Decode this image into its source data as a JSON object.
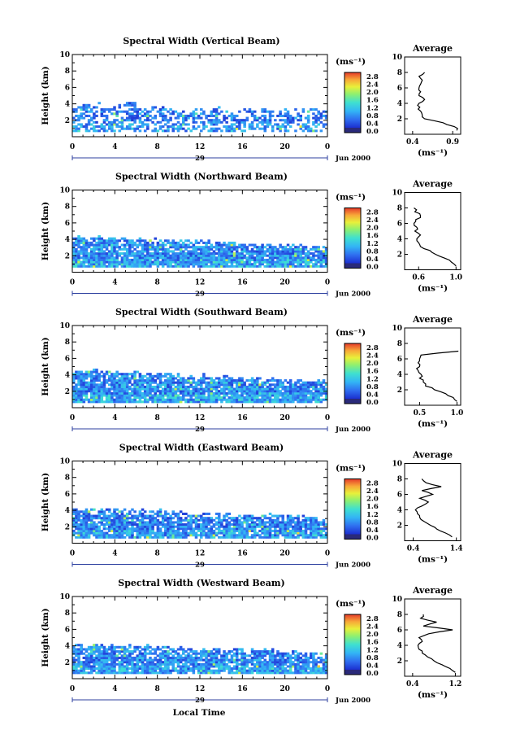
{
  "figure": {
    "x_axis_label": "Local Time",
    "colormap_stops": [
      "#2a2a7a",
      "#1c2fd0",
      "#2f6ff0",
      "#33b5f5",
      "#3fe0d0",
      "#8ef070",
      "#e8f03a",
      "#f8a838",
      "#e63a2a"
    ]
  },
  "chart_data": [
    {
      "type": "heatmap",
      "title": "Spectral Width (Vertical Beam)",
      "ylabel": "Height (km)",
      "ylim": [
        0,
        10
      ],
      "y_ticks": [
        "2",
        "4",
        "6",
        "8",
        "10"
      ],
      "xlim": [
        0,
        24
      ],
      "x_ticks": [
        "0",
        "4",
        "8",
        "12",
        "16",
        "20",
        "0"
      ],
      "date_day": "29",
      "date_month": "Jun 2000",
      "colorbar": {
        "unit": "(ms⁻¹)",
        "range": [
          0,
          2.8
        ],
        "ticks": [
          "2.8",
          "2.4",
          "2.0",
          "1.6",
          "1.2",
          "0.8",
          "0.4",
          "0.0"
        ]
      },
      "echo_top_km": [
        3.9,
        3.8,
        4.2,
        3.5,
        3.6,
        4.0,
        3.4,
        3.5,
        3.6,
        3.3,
        3.2,
        3.3,
        3.2,
        3.3,
        3.1,
        3.0,
        3.2,
        3.1,
        3.4,
        3.0,
        3.2,
        3.3,
        3.2,
        3.0
      ],
      "coverage": 0.55,
      "intensity": 0.3,
      "average": {
        "title": "Average",
        "xlabel": "(ms⁻¹)",
        "x_ticks": [
          "0.4",
          "0.9"
        ],
        "xlim": [
          0.3,
          1.0
        ],
        "height_km": [
          0.5,
          1.0,
          1.5,
          2.0,
          2.5,
          3.0,
          3.5,
          4.0,
          4.5,
          5.0,
          5.5,
          6.0,
          6.5,
          7.0,
          7.5,
          8.0
        ],
        "value": [
          0.95,
          0.92,
          0.78,
          0.55,
          0.52,
          0.5,
          0.49,
          0.48,
          0.55,
          0.48,
          0.5,
          0.48,
          0.5,
          0.52,
          0.48,
          0.55
        ]
      }
    },
    {
      "type": "heatmap",
      "title": "Spectral Width (Northward Beam)",
      "ylabel": "Height (km)",
      "ylim": [
        0,
        10
      ],
      "y_ticks": [
        "2",
        "4",
        "6",
        "8",
        "10"
      ],
      "xlim": [
        0,
        24
      ],
      "x_ticks": [
        "0",
        "4",
        "8",
        "12",
        "16",
        "20",
        "0"
      ],
      "date_day": "29",
      "date_month": "Jun 2000",
      "colorbar": {
        "unit": "(ms⁻¹)",
        "range": [
          0,
          2.8
        ],
        "ticks": [
          "2.8",
          "2.4",
          "2.0",
          "1.6",
          "1.2",
          "0.8",
          "0.4",
          "0.0"
        ]
      },
      "echo_top_km": [
        4.2,
        4.1,
        4.2,
        4.1,
        4.0,
        4.0,
        3.9,
        3.9,
        3.8,
        3.7,
        3.7,
        3.6,
        3.6,
        3.5,
        3.5,
        3.4,
        3.4,
        3.3,
        3.3,
        3.2,
        3.2,
        3.1,
        3.1,
        3.0
      ],
      "coverage": 0.93,
      "intensity": 0.35,
      "average": {
        "title": "Average",
        "xlabel": "(ms⁻¹)",
        "x_ticks": [
          "0.6",
          "1.0"
        ],
        "xlim": [
          0.45,
          1.05
        ],
        "height_km": [
          0.5,
          1.0,
          1.5,
          2.0,
          2.5,
          3.0,
          3.5,
          4.0,
          4.5,
          5.0,
          5.5,
          6.0,
          6.5,
          7.0,
          7.5,
          8.0
        ],
        "value": [
          1.0,
          0.95,
          0.88,
          0.78,
          0.72,
          0.62,
          0.6,
          0.58,
          0.62,
          0.56,
          0.58,
          0.55,
          0.57,
          0.62,
          0.56,
          0.55
        ]
      }
    },
    {
      "type": "heatmap",
      "title": "Spectral Width (Southward Beam)",
      "ylabel": "Height (km)",
      "ylim": [
        0,
        10
      ],
      "y_ticks": [
        "2",
        "4",
        "6",
        "8",
        "10"
      ],
      "xlim": [
        0,
        24
      ],
      "x_ticks": [
        "0",
        "4",
        "8",
        "12",
        "16",
        "20",
        "0"
      ],
      "date_day": "29",
      "date_month": "Jun 2000",
      "colorbar": {
        "unit": "(ms⁻¹)",
        "range": [
          0,
          2.8
        ],
        "ticks": [
          "2.8",
          "2.4",
          "2.0",
          "1.6",
          "1.2",
          "0.8",
          "0.4",
          "0.0"
        ]
      },
      "echo_top_km": [
        4.4,
        4.3,
        4.4,
        4.3,
        4.2,
        4.2,
        4.1,
        4.1,
        4.0,
        4.0,
        3.9,
        3.8,
        3.8,
        3.7,
        3.7,
        3.6,
        3.5,
        3.5,
        3.4,
        3.3,
        3.3,
        3.2,
        3.2,
        3.1
      ],
      "coverage": 0.92,
      "intensity": 0.35,
      "average": {
        "title": "Average",
        "xlabel": "(ms⁻¹)",
        "x_ticks": [
          "0.5",
          "1.0"
        ],
        "xlim": [
          0.3,
          1.05
        ],
        "height_km": [
          0.5,
          1.0,
          1.5,
          2.0,
          2.5,
          3.0,
          3.5,
          4.0,
          4.5,
          5.0,
          5.5,
          6.0,
          6.5,
          7.0
        ],
        "value": [
          1.0,
          0.95,
          0.85,
          0.7,
          0.58,
          0.55,
          0.5,
          0.52,
          0.48,
          0.5,
          0.48,
          0.5,
          0.52,
          1.02
        ]
      }
    },
    {
      "type": "heatmap",
      "title": "Spectral Width (Eastward Beam)",
      "ylabel": "Height (km)",
      "ylim": [
        0,
        10
      ],
      "y_ticks": [
        "2",
        "4",
        "6",
        "8",
        "10"
      ],
      "xlim": [
        0,
        24
      ],
      "x_ticks": [
        "0",
        "4",
        "8",
        "12",
        "16",
        "20",
        "0"
      ],
      "date_day": "29",
      "date_month": "Jun 2000",
      "colorbar": {
        "unit": "(ms⁻¹)",
        "range": [
          0,
          2.8
        ],
        "ticks": [
          "2.8",
          "2.4",
          "2.0",
          "1.6",
          "1.2",
          "0.8",
          "0.4",
          "0.0"
        ]
      },
      "echo_top_km": [
        4.1,
        4.0,
        4.1,
        4.0,
        3.9,
        3.9,
        3.9,
        3.8,
        3.8,
        3.7,
        3.6,
        3.6,
        3.6,
        3.5,
        3.5,
        3.4,
        3.4,
        3.3,
        3.3,
        3.2,
        3.2,
        3.1,
        3.1,
        3.0
      ],
      "coverage": 0.9,
      "intensity": 0.32,
      "average": {
        "title": "Average",
        "xlabel": "(ms⁻¹)",
        "x_ticks": [
          "0.4",
          "1.4"
        ],
        "xlim": [
          0.2,
          1.5
        ],
        "height_km": [
          0.5,
          1.0,
          1.5,
          2.0,
          2.5,
          3.0,
          3.5,
          4.0,
          4.5,
          5.0,
          5.5,
          6.0,
          6.5,
          7.0,
          7.5,
          8.0
        ],
        "value": [
          1.3,
          1.15,
          0.95,
          0.8,
          0.65,
          0.55,
          0.5,
          0.45,
          0.6,
          0.75,
          0.55,
          0.85,
          0.6,
          1.05,
          0.7,
          0.6
        ]
      }
    },
    {
      "type": "heatmap",
      "title": "Spectral Width (Westward Beam)",
      "ylabel": "Height (km)",
      "ylim": [
        0,
        10
      ],
      "y_ticks": [
        "2",
        "4",
        "6",
        "8",
        "10"
      ],
      "xlim": [
        0,
        24
      ],
      "x_ticks": [
        "0",
        "4",
        "8",
        "12",
        "16",
        "20",
        "0"
      ],
      "date_day": "29",
      "date_month": "Jun 2000",
      "colorbar": {
        "unit": "(ms⁻¹)",
        "range": [
          0,
          2.8
        ],
        "ticks": [
          "2.8",
          "2.4",
          "2.0",
          "1.6",
          "1.2",
          "0.8",
          "0.4",
          "0.0"
        ]
      },
      "echo_top_km": [
        4.0,
        3.9,
        4.1,
        4.0,
        3.9,
        3.9,
        3.8,
        3.8,
        3.7,
        3.7,
        3.6,
        3.6,
        3.5,
        3.5,
        3.4,
        3.4,
        3.3,
        3.3,
        3.3,
        3.2,
        3.2,
        3.1,
        3.1,
        3.0
      ],
      "coverage": 0.86,
      "intensity": 0.33,
      "average": {
        "title": "Average",
        "xlabel": "(ms⁻¹)",
        "x_ticks": [
          "0.4",
          "1.2"
        ],
        "xlim": [
          0.25,
          1.3
        ],
        "height_km": [
          0.5,
          1.0,
          1.5,
          2.0,
          2.5,
          3.0,
          3.5,
          4.0,
          4.5,
          5.0,
          5.5,
          6.0,
          6.5,
          7.0,
          7.5,
          8.0
        ],
        "value": [
          1.2,
          1.1,
          0.95,
          0.8,
          0.68,
          0.58,
          0.52,
          0.5,
          0.58,
          0.52,
          0.7,
          1.15,
          0.6,
          0.85,
          0.55,
          0.6
        ]
      }
    }
  ]
}
